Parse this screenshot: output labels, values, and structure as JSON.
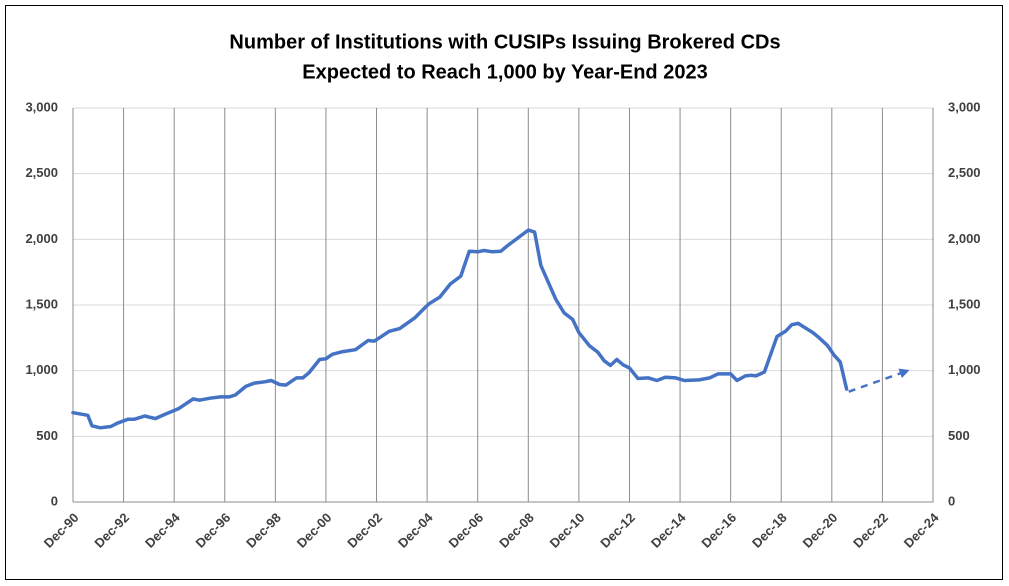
{
  "chart_data": {
    "type": "line",
    "title": "Number of Institutions with CUSIPs Issuing Brokered CDs",
    "subtitle": "Expected to Reach 1,000 by Year-End 2023",
    "series": [
      {
        "color": "#4472c4",
        "dashed": false,
        "arrow": false,
        "x": [
          "1990-12",
          "1991-07",
          "1991-09",
          "1992-01",
          "1992-06",
          "1992-09",
          "1993-02",
          "1993-05",
          "1993-10",
          "1994-03",
          "1994-08",
          "1995-02",
          "1995-09",
          "1995-12",
          "1996-05",
          "1996-10",
          "1997-02",
          "1997-05",
          "1997-10",
          "1998-02",
          "1998-07",
          "1998-10",
          "1999-02",
          "1999-05",
          "1999-10",
          "2000-01",
          "2000-04",
          "2000-09",
          "2000-12",
          "2001-03",
          "2001-08",
          "2002-02",
          "2002-08",
          "2002-11",
          "2003-06",
          "2003-11",
          "2004-06",
          "2004-11",
          "2005-01",
          "2005-06",
          "2005-11",
          "2006-04",
          "2006-08",
          "2006-12",
          "2007-03",
          "2007-07",
          "2007-11",
          "2008-02",
          "2008-07",
          "2008-12",
          "2009-03",
          "2009-06",
          "2010-01",
          "2010-05",
          "2010-09",
          "2010-12",
          "2011-05",
          "2011-09",
          "2011-12",
          "2012-03",
          "2012-06",
          "2012-09",
          "2012-12",
          "2013-04",
          "2013-09",
          "2014-01",
          "2014-05",
          "2014-10",
          "2015-02",
          "2015-09",
          "2016-02",
          "2016-06",
          "2016-12",
          "2017-03",
          "2017-07",
          "2017-10",
          "2017-12",
          "2018-04",
          "2018-08",
          "2018-10",
          "2019-02",
          "2019-05",
          "2019-08",
          "2020-03",
          "2020-06",
          "2020-10",
          "2021-01",
          "2021-04",
          "2021-07"
        ],
        "values": [
          680,
          660,
          580,
          565,
          575,
          600,
          630,
          630,
          655,
          635,
          670,
          710,
          785,
          775,
          790,
          800,
          800,
          815,
          880,
          905,
          915,
          925,
          895,
          890,
          945,
          945,
          985,
          1085,
          1090,
          1125,
          1145,
          1160,
          1230,
          1225,
          1300,
          1320,
          1400,
          1480,
          1510,
          1560,
          1660,
          1720,
          1910,
          1905,
          1915,
          1905,
          1910,
          1950,
          2010,
          2070,
          2055,
          1800,
          1545,
          1440,
          1390,
          1290,
          1190,
          1140,
          1075,
          1040,
          1085,
          1045,
          1020,
          940,
          945,
          925,
          950,
          945,
          925,
          930,
          945,
          975,
          975,
          925,
          960,
          965,
          960,
          990,
          1170,
          1260,
          1300,
          1350,
          1360,
          1290,
          1250,
          1190,
          1120,
          1065,
          860
        ]
      },
      {
        "color": "#4472c4",
        "dashed": true,
        "arrow": true,
        "x": [
          "2021-08",
          "2023-12"
        ],
        "values": [
          840,
          1000
        ]
      }
    ],
    "xlim": [
      "1990-12",
      "2024-12"
    ],
    "xticks": [
      {
        "value": "1990-12",
        "label": "Dec-90"
      },
      {
        "value": "1992-12",
        "label": "Dec-92"
      },
      {
        "value": "1994-12",
        "label": "Dec-94"
      },
      {
        "value": "1996-12",
        "label": "Dec-96"
      },
      {
        "value": "1998-12",
        "label": "Dec-98"
      },
      {
        "value": "2000-12",
        "label": "Dec-00"
      },
      {
        "value": "2002-12",
        "label": "Dec-02"
      },
      {
        "value": "2004-12",
        "label": "Dec-04"
      },
      {
        "value": "2006-12",
        "label": "Dec-06"
      },
      {
        "value": "2008-12",
        "label": "Dec-08"
      },
      {
        "value": "2010-12",
        "label": "Dec-10"
      },
      {
        "value": "2012-12",
        "label": "Dec-12"
      },
      {
        "value": "2014-12",
        "label": "Dec-14"
      },
      {
        "value": "2016-12",
        "label": "Dec-16"
      },
      {
        "value": "2018-12",
        "label": "Dec-18"
      },
      {
        "value": "2020-12",
        "label": "Dec-20"
      },
      {
        "value": "2022-12",
        "label": "Dec-22"
      },
      {
        "value": "2024-12",
        "label": "Dec-24"
      }
    ],
    "ylim": [
      0,
      3000
    ],
    "yticks": [
      0,
      500,
      {
        "value": 1000,
        "label": "1,000"
      },
      {
        "value": 1500,
        "label": "1,500"
      },
      {
        "value": 2000,
        "label": "2,000"
      },
      {
        "value": 2500,
        "label": "2,500"
      },
      {
        "value": 3000,
        "label": "3,000"
      }
    ],
    "y2lim": [
      0,
      3000
    ],
    "y2ticks": [
      0,
      500,
      {
        "value": 1000,
        "label": "1,000"
      },
      {
        "value": 1500,
        "label": "1,500"
      },
      {
        "value": 2000,
        "label": "2,000"
      },
      {
        "value": 2500,
        "label": "2,500"
      },
      {
        "value": 3000,
        "label": "3,000"
      }
    ],
    "grid": true,
    "xgrid": true
  }
}
